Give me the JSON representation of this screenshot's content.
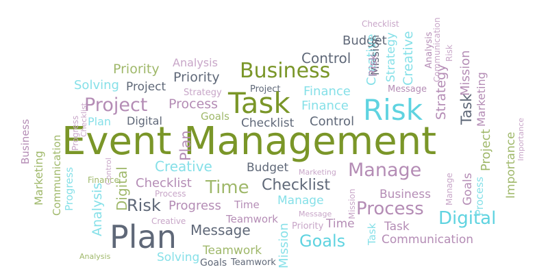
{
  "colors": {
    "olive": "#7a9628",
    "sage": "#9fb86a",
    "slate": "#5f6878",
    "mauve": "#b48cb5",
    "cyan": "#5fd3e0",
    "lightcyan": "#86e0e8",
    "lilac": "#c8a6c8"
  },
  "words": [
    {
      "text": "Event Management",
      "color": "olive"
    },
    {
      "text": "Plan",
      "color": "slate"
    },
    {
      "text": "Task",
      "color": "olive"
    },
    {
      "text": "Risk",
      "color": "cyan"
    },
    {
      "text": "Business",
      "color": "olive"
    },
    {
      "text": "Project",
      "color": "mauve"
    },
    {
      "text": "Manage",
      "color": "mauve"
    },
    {
      "text": "Process",
      "color": "mauve"
    },
    {
      "text": "Digital",
      "color": "cyan"
    },
    {
      "text": "Time",
      "color": "sage"
    },
    {
      "text": "Checklist",
      "color": "slate"
    },
    {
      "text": "Goals",
      "color": "cyan"
    },
    {
      "text": "Risk",
      "color": "slate"
    },
    {
      "text": "Creative",
      "color": "lightcyan"
    },
    {
      "text": "Checklist",
      "color": "mauve"
    },
    {
      "text": "Progress",
      "color": "mauve"
    },
    {
      "text": "Message",
      "color": "slate"
    },
    {
      "text": "Teamwork",
      "color": "sage"
    },
    {
      "text": "Control",
      "color": "slate"
    },
    {
      "text": "Control",
      "color": "slate"
    },
    {
      "text": "Priority",
      "color": "sage"
    },
    {
      "text": "Priority",
      "color": "slate"
    },
    {
      "text": "Solving",
      "color": "lightcyan"
    },
    {
      "text": "Project",
      "color": "slate"
    },
    {
      "text": "Process",
      "color": "mauve"
    },
    {
      "text": "Finance",
      "color": "lightcyan"
    },
    {
      "text": "Finance",
      "color": "lightcyan"
    },
    {
      "text": "Goals",
      "color": "sage"
    },
    {
      "text": "Checklist",
      "color": "slate"
    },
    {
      "text": "Budget",
      "color": "slate"
    },
    {
      "text": "Budget",
      "color": "slate"
    },
    {
      "text": "Analysis",
      "color": "lilac"
    },
    {
      "text": "Digital",
      "color": "slate"
    },
    {
      "text": "Plan",
      "color": "lightcyan"
    },
    {
      "text": "Business",
      "color": "mauve"
    },
    {
      "text": "Communication",
      "color": "mauve"
    },
    {
      "text": "Task",
      "color": "mauve"
    },
    {
      "text": "Manage",
      "color": "lightcyan"
    },
    {
      "text": "Time",
      "color": "mauve"
    },
    {
      "text": "Teamwork",
      "color": "mauve"
    },
    {
      "text": "Teamwork",
      "color": "slate"
    },
    {
      "text": "Solving",
      "color": "lightcyan"
    },
    {
      "text": "Goals",
      "color": "slate"
    },
    {
      "text": "Message",
      "color": "mauve"
    },
    {
      "text": "Priority",
      "color": "lilac"
    },
    {
      "text": "Time",
      "color": "mauve"
    },
    {
      "text": "Strategy",
      "color": "lilac"
    },
    {
      "text": "Project",
      "color": "slate"
    },
    {
      "text": "Process",
      "color": "lilac"
    },
    {
      "text": "Creative",
      "color": "lilac"
    },
    {
      "text": "Finance",
      "color": "sage"
    },
    {
      "text": "Analysis",
      "color": "sage"
    },
    {
      "text": "Marketing",
      "color": "lilac"
    },
    {
      "text": "Checklist",
      "color": "lilac"
    },
    {
      "text": "Message",
      "color": "lilac"
    },
    {
      "text": "Creative",
      "color": "lightcyan"
    },
    {
      "text": "Mission",
      "color": "slate"
    },
    {
      "text": "Marketing",
      "color": "sage"
    },
    {
      "text": "Business",
      "color": "mauve"
    },
    {
      "text": "Communication",
      "color": "sage"
    },
    {
      "text": "Progress",
      "color": "lightcyan"
    },
    {
      "text": "Analysis",
      "color": "lightcyan"
    },
    {
      "text": "Digital",
      "color": "sage"
    },
    {
      "text": "Risk",
      "color": "mauve"
    },
    {
      "text": "Strategy",
      "color": "lightcyan"
    },
    {
      "text": "Creative",
      "color": "lightcyan"
    },
    {
      "text": "Mission",
      "color": "mauve"
    },
    {
      "text": "Strategy",
      "color": "mauve"
    },
    {
      "text": "Task",
      "color": "slate"
    },
    {
      "text": "Marketing",
      "color": "mauve"
    },
    {
      "text": "Project",
      "color": "sage"
    },
    {
      "text": "Importance",
      "color": "sage"
    },
    {
      "text": "Importance",
      "color": "lilac"
    },
    {
      "text": "Goals",
      "color": "mauve"
    },
    {
      "text": "Process",
      "color": "lightcyan"
    },
    {
      "text": "Plan",
      "color": "mauve"
    },
    {
      "text": "Mission",
      "color": "lightcyan"
    },
    {
      "text": "Task",
      "color": "lightcyan"
    },
    {
      "text": "Progress",
      "color": "lilac"
    },
    {
      "text": "Checklist",
      "color": "lilac"
    },
    {
      "text": "Risk",
      "color": "lilac"
    },
    {
      "text": "Mission",
      "color": "lilac"
    },
    {
      "text": "Communication",
      "color": "lilac"
    },
    {
      "text": "Analysis",
      "color": "mauve"
    },
    {
      "text": "Control",
      "color": "lilac"
    },
    {
      "text": "Manage",
      "color": "lilac"
    }
  ]
}
